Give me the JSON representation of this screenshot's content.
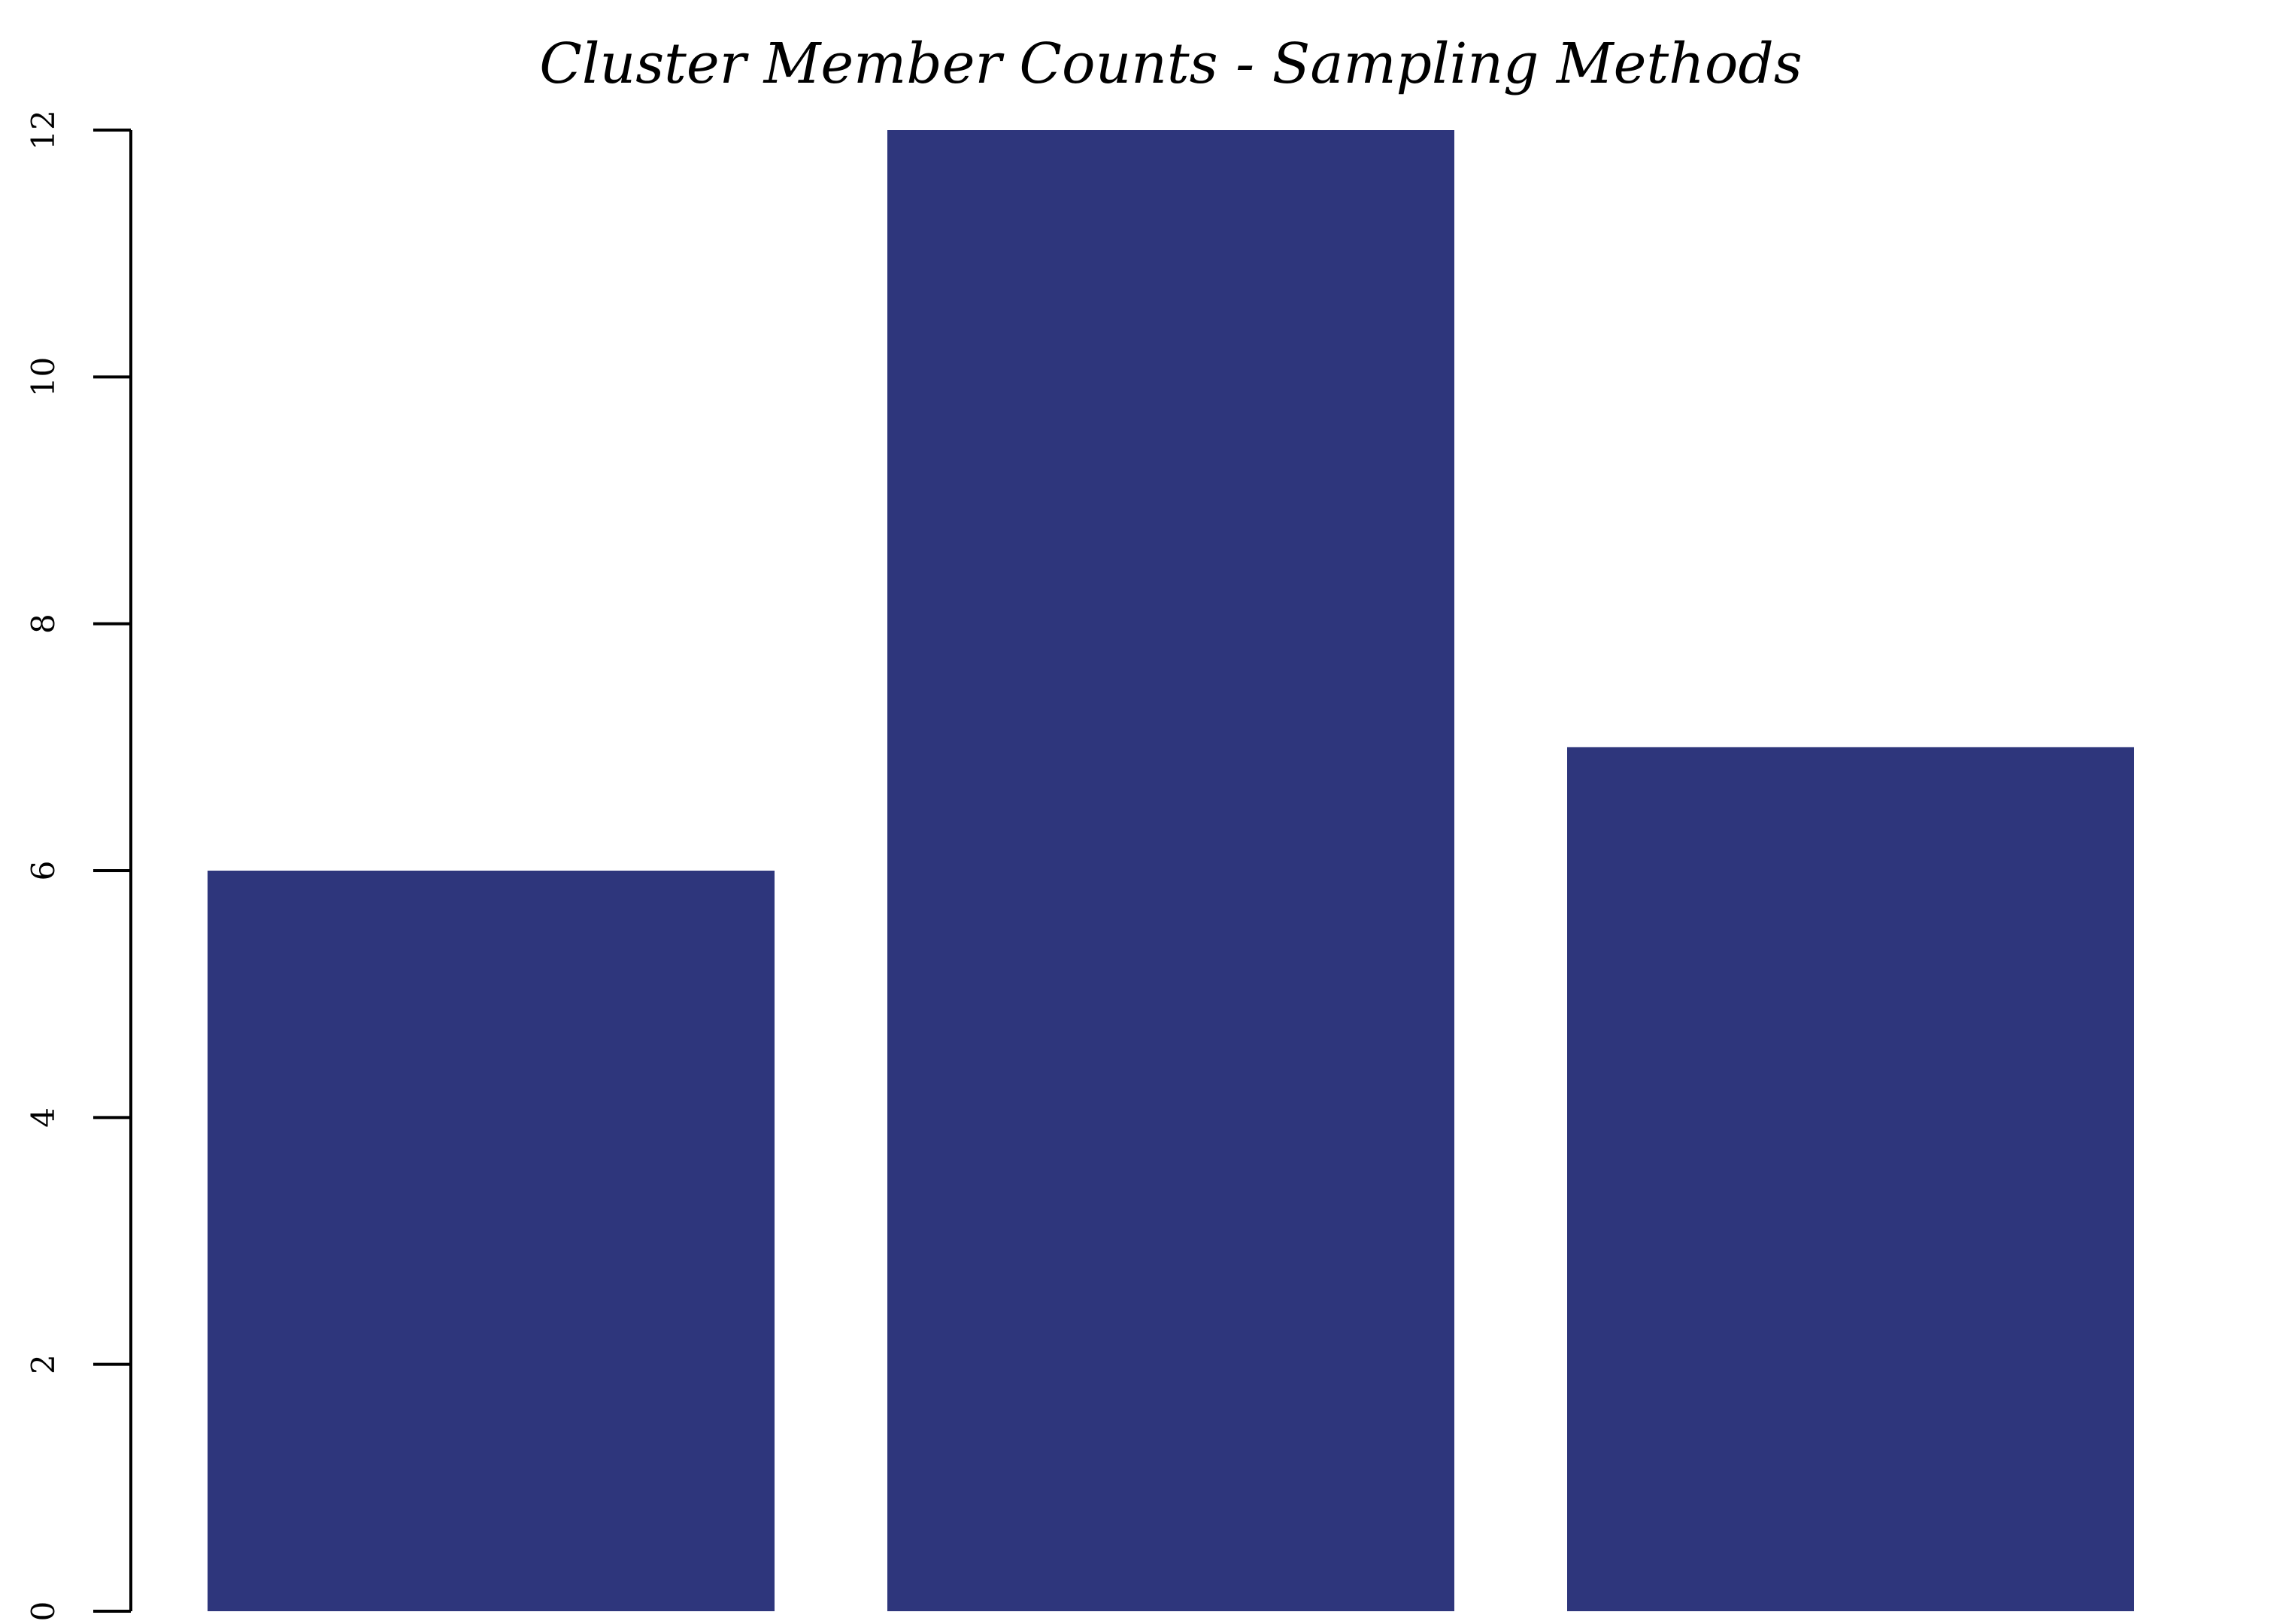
{
  "chart_data": {
    "type": "bar",
    "title": "Cluster Member Counts - Sampling Methods",
    "xlabel": "",
    "ylabel": "",
    "categories": [
      "",
      "",
      ""
    ],
    "values": [
      6,
      12,
      7
    ],
    "ylim": [
      0,
      12
    ],
    "y_ticks": [
      0,
      2,
      4,
      6,
      8,
      10,
      12
    ],
    "y_tick_labels": [
      "0",
      "2",
      "4",
      "6",
      "8",
      "10",
      "12"
    ],
    "grid": false,
    "legend": "none",
    "colors": {
      "bar": "#2e367c",
      "axis": "#000000",
      "background": "#ffffff"
    }
  }
}
